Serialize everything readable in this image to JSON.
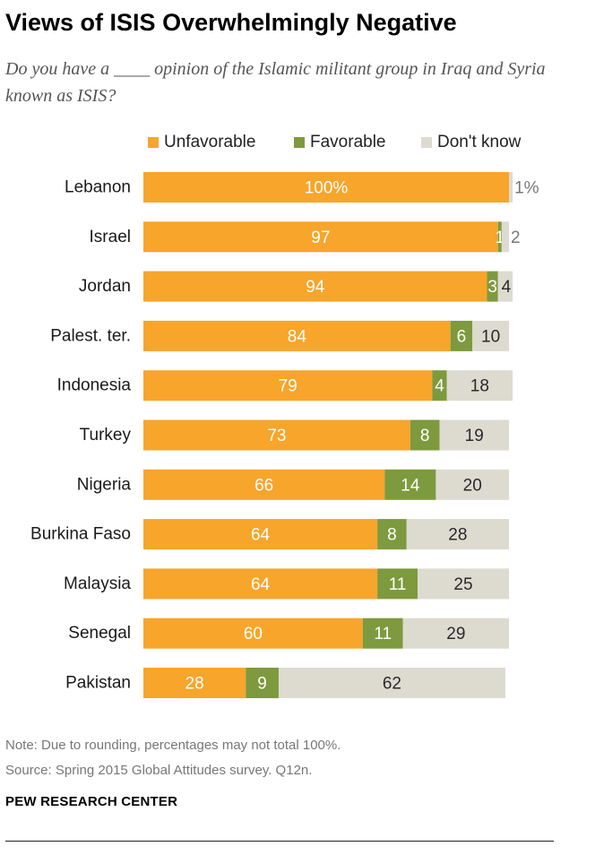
{
  "title": "Views of ISIS Overwhelmingly Negative",
  "subtitle": "Do you have a ____ opinion of the Islamic militant group in Iraq and Syria known as ISIS?",
  "legend": [
    {
      "label": "Unfavorable",
      "color": "#F7A52B"
    },
    {
      "label": "Favorable",
      "color": "#7D9A3E"
    },
    {
      "label": "Don't know",
      "color": "#DDDAD0"
    }
  ],
  "chart_data": {
    "type": "bar",
    "orientation": "horizontal",
    "stacked": true,
    "categories": [
      "Lebanon",
      "Israel",
      "Jordan",
      "Palest. ter.",
      "Indonesia",
      "Turkey",
      "Nigeria",
      "Burkina Faso",
      "Malaysia",
      "Senegal",
      "Pakistan"
    ],
    "series": [
      {
        "name": "Unfavorable",
        "color": "#F7A52B",
        "values": [
          100,
          97,
          94,
          84,
          79,
          73,
          66,
          64,
          64,
          60,
          28
        ]
      },
      {
        "name": "Favorable",
        "color": "#7D9A3E",
        "values": [
          0,
          1,
          3,
          6,
          4,
          8,
          14,
          8,
          11,
          11,
          9
        ]
      },
      {
        "name": "Don't know",
        "color": "#DDDAD0",
        "values": [
          1,
          2,
          4,
          10,
          18,
          19,
          20,
          28,
          25,
          29,
          62
        ]
      }
    ],
    "labels": [
      [
        "100%",
        "",
        "1%"
      ],
      [
        "97",
        "1",
        "2"
      ],
      [
        "94",
        "3",
        "4"
      ],
      [
        "84",
        "6",
        "10"
      ],
      [
        "79",
        "4",
        "18"
      ],
      [
        "73",
        "8",
        "19"
      ],
      [
        "66",
        "14",
        "20"
      ],
      [
        "64",
        "8",
        "28"
      ],
      [
        "64",
        "11",
        "25"
      ],
      [
        "60",
        "11",
        "29"
      ],
      [
        "28",
        "9",
        "62"
      ]
    ],
    "xlim": [
      0,
      100
    ]
  },
  "note": "Note: Due to rounding, percentages may not total 100%.",
  "source": "Source: Spring 2015 Global Attitudes survey. Q12n.",
  "brand": "PEW RESEARCH CENTER"
}
